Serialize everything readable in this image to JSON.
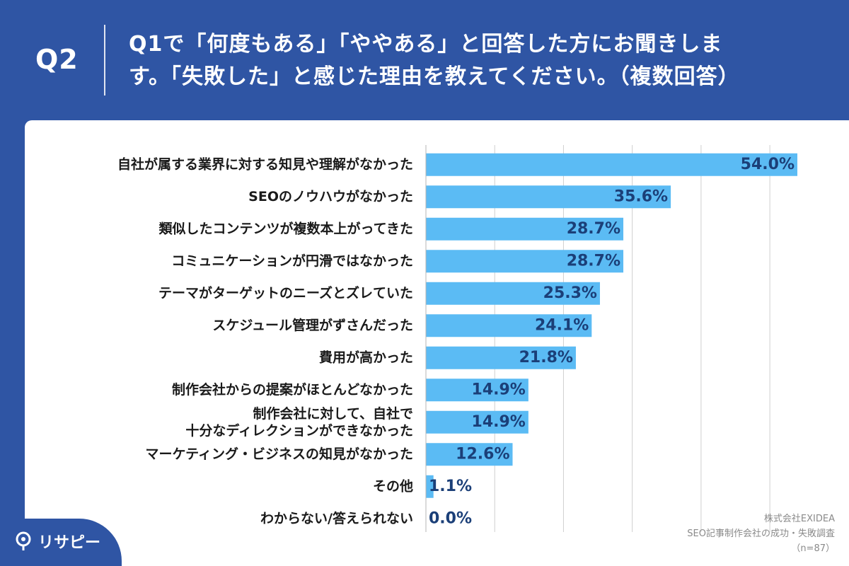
{
  "header": {
    "qnum": "Q2",
    "line1": "Q1で「何度もある」「ややある」と回答した方にお聞きしま",
    "line2": "す。「失敗した」と感じた理由を教えてください。（複数回答）"
  },
  "chart_data": {
    "type": "bar",
    "orientation": "horizontal",
    "xlim": [
      0,
      60
    ],
    "grid": true,
    "categories": [
      [
        "自社が属する業界に対する知見や理解がなかった"
      ],
      [
        "SEOのノウハウがなかった"
      ],
      [
        "類似したコンテンツが複数本上がってきた"
      ],
      [
        "コミュニケーションが円滑ではなかった"
      ],
      [
        "テーマがターゲットのニーズとズレていた"
      ],
      [
        "スケジュール管理がずさんだった"
      ],
      [
        "費用が高かった"
      ],
      [
        "制作会社からの提案がほとんどなかった"
      ],
      [
        "制作会社に対して、自社で",
        "十分なディレクションができなかった"
      ],
      [
        "マーケティング・ビジネスの知見がなかった"
      ],
      [
        "その他"
      ],
      [
        "わからない/答えられない"
      ]
    ],
    "values": [
      54.0,
      35.6,
      28.7,
      28.7,
      25.3,
      24.1,
      21.8,
      14.9,
      14.9,
      12.6,
      1.1,
      0.0
    ],
    "value_labels": [
      "54.0%",
      "35.6%",
      "28.7%",
      "28.7%",
      "25.3%",
      "24.1%",
      "21.8%",
      "14.9%",
      "14.9%",
      "12.6%",
      "1.1%",
      "0.0%"
    ],
    "bar_color": "#5bbbf4",
    "value_color": "#1b3f78"
  },
  "source": {
    "line1": "株式会社EXIDEA",
    "line2": "SEO記事制作会社の成功・失敗調査",
    "line3": "（n=87）"
  },
  "brand": {
    "name": "リサピー"
  }
}
